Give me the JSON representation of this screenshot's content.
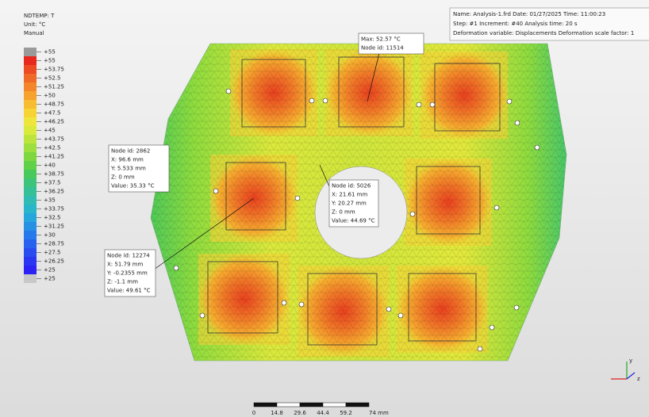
{
  "header": {
    "variable": "NDTEMP: T",
    "unit": "Unit: °C",
    "mode": "Manual"
  },
  "legend": {
    "labels": [
      "+55",
      "+55",
      "+53.75",
      "+52.5",
      "+51.25",
      "+50",
      "+48.75",
      "+47.5",
      "+46.25",
      "+45",
      "+43.75",
      "+42.5",
      "+41.25",
      "+40",
      "+38.75",
      "+37.5",
      "+36.25",
      "+35",
      "+33.75",
      "+32.5",
      "+31.25",
      "+30",
      "+28.75",
      "+27.5",
      "+26.25",
      "+25",
      "+25"
    ],
    "colors": [
      "#9a9a9a",
      "#e8271f",
      "#ec4a22",
      "#ef6a26",
      "#f3862a",
      "#f6a22e",
      "#f8bc30",
      "#f7d434",
      "#eee63a",
      "#d9ea3c",
      "#bce43d",
      "#9ede3e",
      "#7fd740",
      "#60d046",
      "#47c95c",
      "#3dc47a",
      "#36c096",
      "#30bcb2",
      "#2ab6ca",
      "#27a6dc",
      "#2690e4",
      "#2679ea",
      "#2762ee",
      "#294cf0",
      "#2b36f2",
      "#2d22f4",
      "#c8c8c8"
    ]
  },
  "info": {
    "lines": [
      "Name: Analysis-1.frd   Date: 01/27/2025   Time: 11:00:23",
      "Step: #1   Increment: #40   Analysis time: 20 s",
      "Deformation variable: Displacements   Deformation scale factor: 1"
    ]
  },
  "annotations": [
    {
      "lines": [
        "Max: 52.57 °C",
        "Node id: 11514"
      ]
    },
    {
      "lines": [
        "Node id: 2862",
        "X: 96.6 mm",
        "Y: 5.533 mm",
        "Z: 0 mm",
        "Value: 35.33 °C"
      ]
    },
    {
      "lines": [
        "Node id: 5026",
        "X: 21.61 mm",
        "Y: 20.27 mm",
        "Z: 0 mm",
        "Value: 44.69 °C"
      ]
    },
    {
      "lines": [
        "Node id: 12274",
        "X: 51.79 mm",
        "Y: -0.2355 mm",
        "Z: -1.1 mm",
        "Value: 49.61 °C"
      ]
    }
  ],
  "scale_bar": {
    "labels": [
      "0",
      "14.8",
      "29.6",
      "44.4",
      "59.2",
      "74 mm"
    ]
  },
  "triad": {
    "labels": [
      "y",
      "z"
    ]
  }
}
